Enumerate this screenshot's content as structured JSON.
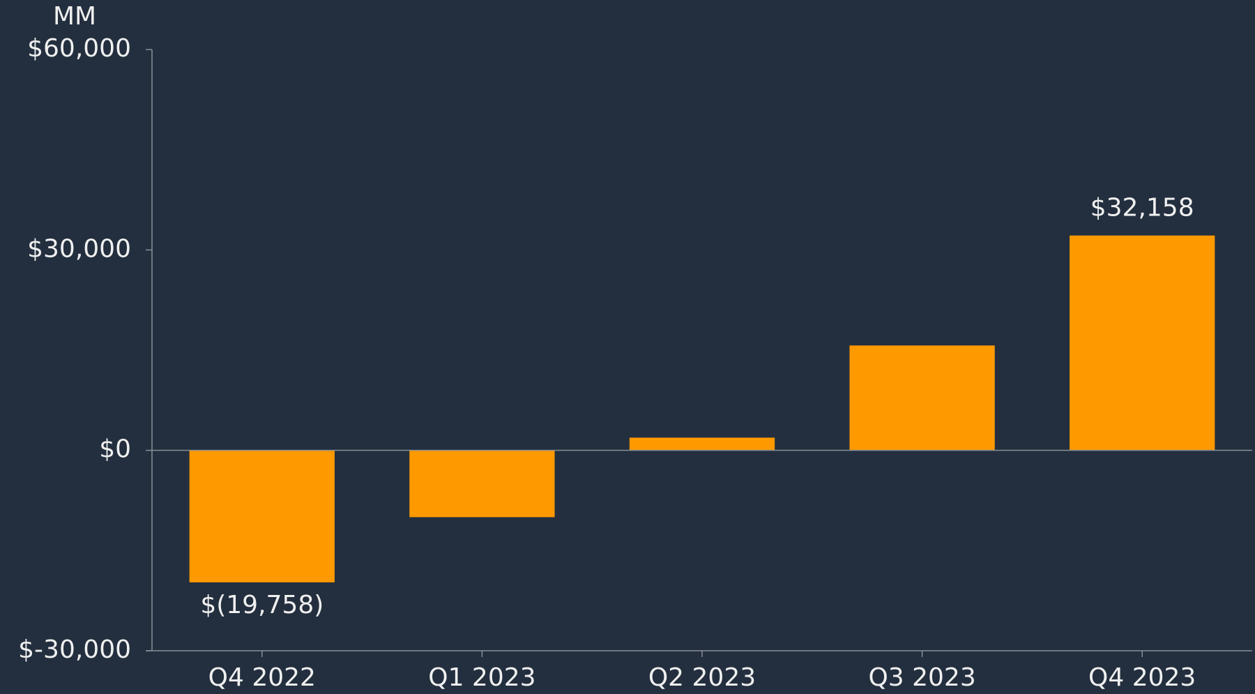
{
  "chart_data": {
    "type": "bar",
    "axis_unit": "MM",
    "categories": [
      "Q4 2022",
      "Q1 2023",
      "Q2 2023",
      "Q3 2023",
      "Q4 2023"
    ],
    "values": [
      -19758,
      -10000,
      1900,
      15700,
      32158
    ],
    "value_labels": [
      "$(19,758)",
      null,
      null,
      null,
      "$32,158"
    ],
    "color": "#ff9900",
    "ylim": [
      -30000,
      60000
    ],
    "yticks": [
      {
        "value": -30000,
        "label": "$-30,000"
      },
      {
        "value": 0,
        "label": "$0"
      },
      {
        "value": 30000,
        "label": "$30,000"
      },
      {
        "value": 60000,
        "label": "$60,000"
      }
    ],
    "grid": false
  }
}
